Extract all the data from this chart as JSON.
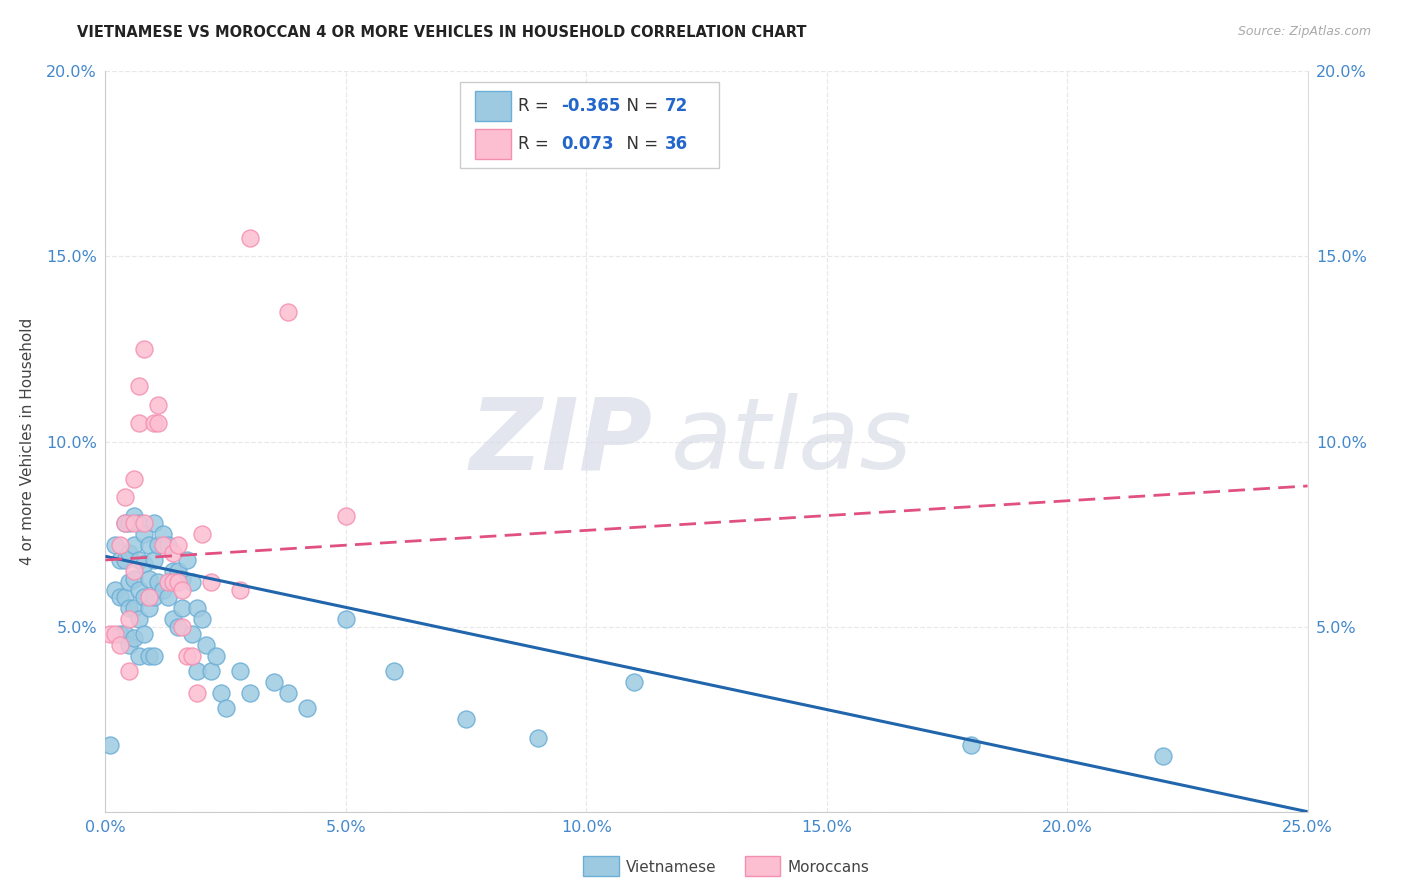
{
  "title": "VIETNAMESE VS MOROCCAN 4 OR MORE VEHICLES IN HOUSEHOLD CORRELATION CHART",
  "source": "Source: ZipAtlas.com",
  "ylabel": "4 or more Vehicles in Household",
  "xlim": [
    0.0,
    0.25
  ],
  "ylim": [
    0.0,
    0.2
  ],
  "xticks": [
    0.0,
    0.05,
    0.1,
    0.15,
    0.2,
    0.25
  ],
  "yticks": [
    0.0,
    0.05,
    0.1,
    0.15,
    0.2
  ],
  "xticklabels": [
    "0.0%",
    "5.0%",
    "10.0%",
    "15.0%",
    "20.0%",
    "25.0%"
  ],
  "yticklabels_left": [
    "",
    "5.0%",
    "10.0%",
    "15.0%",
    "20.0%"
  ],
  "yticklabels_right": [
    "",
    "5.0%",
    "10.0%",
    "15.0%",
    "20.0%"
  ],
  "legend_r_vietnamese": "-0.365",
  "legend_n_vietnamese": "72",
  "legend_r_moroccan": "0.073",
  "legend_n_moroccan": "36",
  "watermark_zip": "ZIP",
  "watermark_atlas": "atlas",
  "vietnamese_fill": "#9ecae1",
  "vietnamese_edge": "#6baed6",
  "moroccan_fill": "#fcbfd2",
  "moroccan_edge": "#f48fb1",
  "trendline_vietnamese": "#2166ac",
  "trendline_moroccan": "#e05080",
  "tick_color": "#4488cc",
  "title_color": "#222222",
  "source_color": "#aaaaaa",
  "grid_color": "#e8e8e8",
  "legend_border": "#cccccc",
  "bottom_legend_color": "#444444",
  "vietnamese_x": [
    0.001,
    0.002,
    0.002,
    0.003,
    0.003,
    0.003,
    0.004,
    0.004,
    0.004,
    0.004,
    0.005,
    0.005,
    0.005,
    0.005,
    0.005,
    0.006,
    0.006,
    0.006,
    0.006,
    0.006,
    0.007,
    0.007,
    0.007,
    0.007,
    0.007,
    0.008,
    0.008,
    0.008,
    0.008,
    0.009,
    0.009,
    0.009,
    0.009,
    0.01,
    0.01,
    0.01,
    0.01,
    0.011,
    0.011,
    0.012,
    0.012,
    0.013,
    0.013,
    0.014,
    0.014,
    0.015,
    0.015,
    0.016,
    0.016,
    0.017,
    0.018,
    0.018,
    0.019,
    0.019,
    0.02,
    0.021,
    0.022,
    0.023,
    0.024,
    0.025,
    0.028,
    0.03,
    0.035,
    0.038,
    0.042,
    0.05,
    0.06,
    0.075,
    0.09,
    0.11,
    0.18,
    0.22
  ],
  "vietnamese_y": [
    0.018,
    0.072,
    0.06,
    0.068,
    0.058,
    0.048,
    0.078,
    0.068,
    0.058,
    0.048,
    0.078,
    0.07,
    0.062,
    0.055,
    0.045,
    0.08,
    0.072,
    0.063,
    0.055,
    0.047,
    0.078,
    0.068,
    0.06,
    0.052,
    0.042,
    0.075,
    0.067,
    0.058,
    0.048,
    0.072,
    0.063,
    0.055,
    0.042,
    0.078,
    0.068,
    0.058,
    0.042,
    0.072,
    0.062,
    0.075,
    0.06,
    0.072,
    0.058,
    0.065,
    0.052,
    0.065,
    0.05,
    0.063,
    0.055,
    0.068,
    0.062,
    0.048,
    0.055,
    0.038,
    0.052,
    0.045,
    0.038,
    0.042,
    0.032,
    0.028,
    0.038,
    0.032,
    0.035,
    0.032,
    0.028,
    0.052,
    0.038,
    0.025,
    0.02,
    0.035,
    0.018,
    0.015
  ],
  "moroccan_x": [
    0.001,
    0.002,
    0.003,
    0.003,
    0.004,
    0.004,
    0.005,
    0.005,
    0.006,
    0.006,
    0.006,
    0.007,
    0.007,
    0.008,
    0.008,
    0.009,
    0.01,
    0.011,
    0.011,
    0.012,
    0.013,
    0.014,
    0.014,
    0.015,
    0.015,
    0.016,
    0.016,
    0.017,
    0.018,
    0.019,
    0.02,
    0.022,
    0.028,
    0.03,
    0.038,
    0.05
  ],
  "moroccan_y": [
    0.048,
    0.048,
    0.045,
    0.072,
    0.085,
    0.078,
    0.052,
    0.038,
    0.09,
    0.078,
    0.065,
    0.115,
    0.105,
    0.125,
    0.078,
    0.058,
    0.105,
    0.105,
    0.11,
    0.072,
    0.062,
    0.07,
    0.062,
    0.072,
    0.062,
    0.06,
    0.05,
    0.042,
    0.042,
    0.032,
    0.075,
    0.062,
    0.06,
    0.155,
    0.135,
    0.08
  ],
  "trendline_viet_x0": 0.0,
  "trendline_viet_x1": 0.25,
  "trendline_viet_y0": 0.069,
  "trendline_viet_y1": 0.0,
  "trendline_morc_x0": 0.0,
  "trendline_morc_x1": 0.25,
  "trendline_morc_y0": 0.068,
  "trendline_morc_y1": 0.088
}
